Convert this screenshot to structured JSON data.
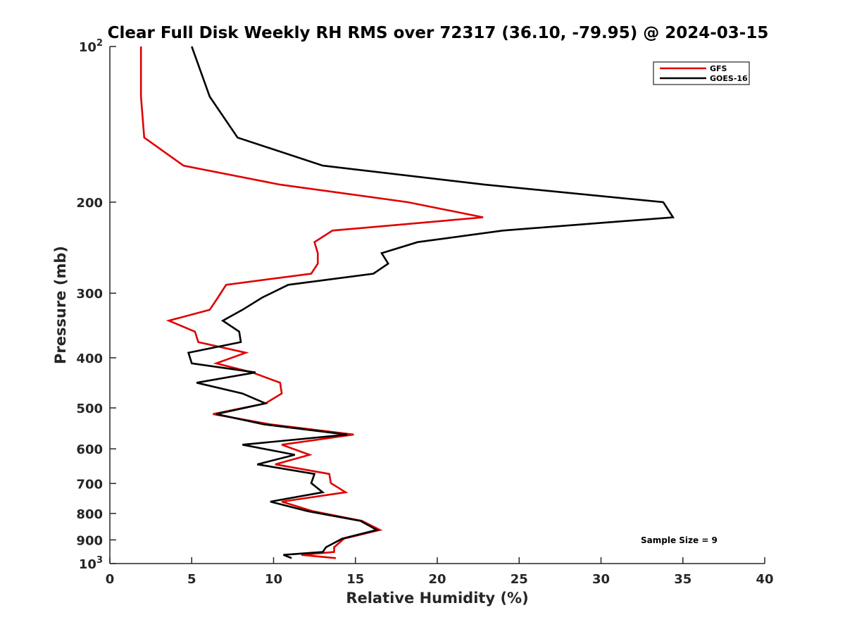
{
  "chart_data": {
    "type": "line",
    "title": "Clear Full Disk Weekly RH RMS over 72317 (36.10, -79.95) @ 2024-03-15",
    "xlabel": "Relative Humidity (%)",
    "ylabel": "Pressure (mb)",
    "xlim": [
      0,
      40
    ],
    "ylim": [
      100,
      1000
    ],
    "y_scale": "log",
    "y_reversed": true,
    "grid": false,
    "legend_position": "top-right",
    "x_ticks": [
      "0",
      "5",
      "10",
      "15",
      "20",
      "25",
      "30",
      "35",
      "40"
    ],
    "x_tick_values": [
      0,
      5,
      10,
      15,
      20,
      25,
      30,
      35,
      40
    ],
    "y_ticks": [
      {
        "value": 100,
        "base": "10",
        "exp": "2"
      },
      {
        "value": 200,
        "label": "200"
      },
      {
        "value": 300,
        "label": "300"
      },
      {
        "value": 400,
        "label": "400"
      },
      {
        "value": 500,
        "label": "500"
      },
      {
        "value": 600,
        "label": "600"
      },
      {
        "value": 700,
        "label": "700"
      },
      {
        "value": 800,
        "label": "800"
      },
      {
        "value": 900,
        "label": "900"
      },
      {
        "value": 1000,
        "base": "10",
        "exp": "3"
      }
    ],
    "annotation": "Sample Size = 9",
    "series": [
      {
        "name": "GFS",
        "color": "#e00000",
        "points": [
          [
            1.9,
            100
          ],
          [
            1.9,
            125
          ],
          [
            2.1,
            150
          ],
          [
            4.5,
            170
          ],
          [
            10.4,
            185
          ],
          [
            18.2,
            200
          ],
          [
            22.8,
            214
          ],
          [
            13.6,
            227
          ],
          [
            12.5,
            239
          ],
          [
            12.7,
            251
          ],
          [
            12.7,
            263
          ],
          [
            12.3,
            275
          ],
          [
            7.1,
            289
          ],
          [
            6.6,
            306
          ],
          [
            6.1,
            323
          ],
          [
            3.6,
            339
          ],
          [
            5.2,
            356
          ],
          [
            5.4,
            373
          ],
          [
            8.3,
            391
          ],
          [
            6.5,
            410
          ],
          [
            8.7,
            427
          ],
          [
            10.4,
            447
          ],
          [
            10.5,
            469
          ],
          [
            9.5,
            490
          ],
          [
            6.3,
            514
          ],
          [
            9.8,
            538
          ],
          [
            14.9,
            563
          ],
          [
            10.5,
            589
          ],
          [
            12.2,
            616
          ],
          [
            10.1,
            643
          ],
          [
            13.4,
            671
          ],
          [
            13.5,
            699
          ],
          [
            14.4,
            728
          ],
          [
            10.5,
            759
          ],
          [
            12.4,
            792
          ],
          [
            15.4,
            827
          ],
          [
            16.5,
            861
          ],
          [
            14.3,
            895
          ],
          [
            13.7,
            930
          ],
          [
            13.7,
            950
          ],
          [
            11.7,
            962
          ],
          [
            13.8,
            976
          ]
        ]
      },
      {
        "name": "GOES-16",
        "color": "#000000",
        "points": [
          [
            5.0,
            100
          ],
          [
            6.1,
            125
          ],
          [
            7.8,
            150
          ],
          [
            13.0,
            170
          ],
          [
            22.9,
            185
          ],
          [
            33.8,
            200
          ],
          [
            34.4,
            214
          ],
          [
            24.0,
            227
          ],
          [
            18.8,
            239
          ],
          [
            16.6,
            251
          ],
          [
            17.0,
            263
          ],
          [
            16.1,
            275
          ],
          [
            10.9,
            289
          ],
          [
            9.3,
            306
          ],
          [
            8.1,
            323
          ],
          [
            6.9,
            339
          ],
          [
            7.9,
            356
          ],
          [
            8.0,
            373
          ],
          [
            4.8,
            391
          ],
          [
            5.0,
            410
          ],
          [
            8.9,
            427
          ],
          [
            5.3,
            447
          ],
          [
            8.1,
            469
          ],
          [
            9.5,
            490
          ],
          [
            6.5,
            514
          ],
          [
            9.4,
            538
          ],
          [
            14.5,
            563
          ],
          [
            8.1,
            589
          ],
          [
            11.3,
            616
          ],
          [
            9.0,
            643
          ],
          [
            12.5,
            671
          ],
          [
            12.3,
            699
          ],
          [
            13.0,
            728
          ],
          [
            9.8,
            759
          ],
          [
            12.1,
            792
          ],
          [
            15.3,
            827
          ],
          [
            16.3,
            861
          ],
          [
            14.2,
            895
          ],
          [
            13.2,
            930
          ],
          [
            13.0,
            950
          ],
          [
            10.6,
            962
          ],
          [
            11.1,
            976
          ]
        ]
      }
    ]
  }
}
